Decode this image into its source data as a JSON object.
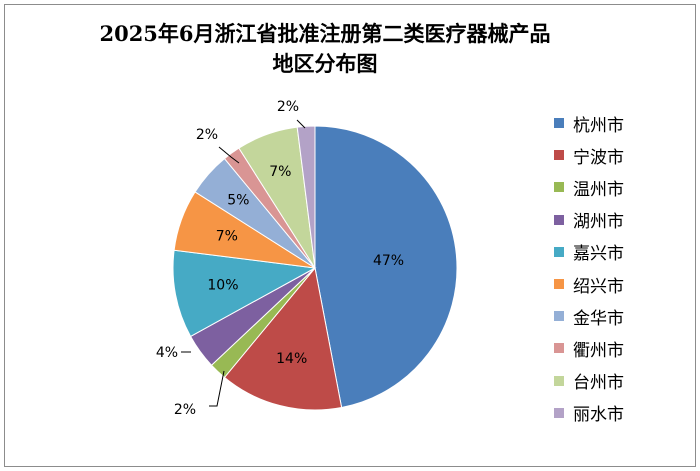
{
  "chart_data": {
    "type": "pie",
    "title": [
      "2025年6月浙江省批准注册第二类医疗器械产品",
      "地区分布图"
    ],
    "categories": [
      "杭州市",
      "宁波市",
      "温州市",
      "湖州市",
      "嘉兴市",
      "绍兴市",
      "金华市",
      "衢州市",
      "台州市",
      "丽水市"
    ],
    "values": [
      47,
      14,
      2,
      4,
      10,
      7,
      5,
      2,
      7,
      2
    ],
    "labels": [
      "47%",
      "14%",
      "2%",
      "4%",
      "10%",
      "7%",
      "5%",
      "2%",
      "7%",
      "2%"
    ],
    "colors": [
      "#4a7ebb",
      "#be4b48",
      "#98b954",
      "#7d60a0",
      "#46aac5",
      "#f69545",
      "#94afd6",
      "#d99594",
      "#c3d69b",
      "#b3a2c7"
    ],
    "legend_position": "right"
  }
}
